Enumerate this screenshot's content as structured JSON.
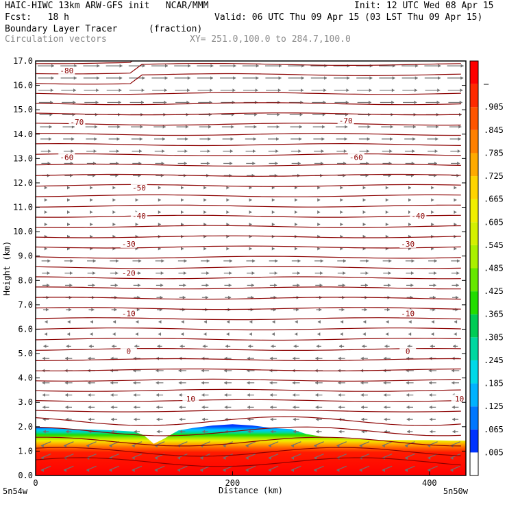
{
  "header": {
    "line1_left": "HAIC-HIWC 13km ARW-GFS init   NCAR/MMM",
    "line1_right": "Init: 12 UTC Wed 08 Apr 15",
    "line2_left": "Fcst:   18 h",
    "line2_right": "Valid: 06 UTC Thu 09 Apr 15 (03 LST Thu 09 Apr 15)",
    "field": "Boundary Layer Tracer",
    "field_units": "(fraction)",
    "vectors": "Circulation vectors",
    "xy_range": "XY= 251.0,100.0 to 284.7,100.0"
  },
  "chart_data": {
    "type": "heatmap",
    "title": "Boundary Layer Tracer",
    "xlabel": "Distance (km)",
    "ylabel": "Height (km)",
    "xlim": [
      0,
      437
    ],
    "ylim": [
      0,
      17
    ],
    "x_ticks": [
      "0",
      "200",
      "400"
    ],
    "x_tick_values": [
      0,
      200,
      400
    ],
    "x_corner_left": "5n54w",
    "x_corner_right": "5n50w",
    "y_ticks": [
      "0.0",
      "1.0",
      "2.0",
      "3.0",
      "4.0",
      "5.0",
      "6.0",
      "7.0",
      "8.0",
      "9.0",
      "10.0",
      "11.0",
      "12.0",
      "13.0",
      "14.0",
      "15.0",
      "16.0",
      "17.0"
    ],
    "colorbar_labels": [
      ".005",
      ".065",
      ".125",
      ".185",
      ".245",
      ".305",
      ".365",
      ".425",
      ".485",
      ".545",
      ".605",
      ".665",
      ".725",
      ".785",
      ".845",
      ".905",
      "–"
    ],
    "colorbar_colors": [
      "#ffffff",
      "#0033ff",
      "#0077ff",
      "#00b2ff",
      "#00d9e8",
      "#00d7a0",
      "#00cc55",
      "#22dd00",
      "#66e800",
      "#aaf000",
      "#d4f000",
      "#f0ee00",
      "#ffd400",
      "#ffaa00",
      "#ff8000",
      "#ff5500",
      "#ff2a00",
      "#ff0000"
    ],
    "tracer_top_km": [
      [
        0,
        1.98
      ],
      [
        20,
        1.95
      ],
      [
        40,
        1.9
      ],
      [
        60,
        1.88
      ],
      [
        80,
        1.85
      ],
      [
        100,
        1.8
      ],
      [
        110,
        1.65
      ],
      [
        120,
        1.3
      ],
      [
        130,
        1.5
      ],
      [
        145,
        1.85
      ],
      [
        160,
        1.95
      ],
      [
        180,
        2.05
      ],
      [
        200,
        2.1
      ],
      [
        220,
        2.05
      ],
      [
        240,
        1.95
      ],
      [
        260,
        1.9
      ],
      [
        275,
        1.7
      ],
      [
        290,
        1.6
      ],
      [
        305,
        1.55
      ],
      [
        320,
        1.5
      ],
      [
        335,
        1.5
      ],
      [
        345,
        1.45
      ],
      [
        360,
        1.45
      ],
      [
        380,
        1.45
      ],
      [
        400,
        1.45
      ],
      [
        420,
        1.43
      ],
      [
        437,
        1.43
      ]
    ],
    "isotherm_labels": [
      "-80",
      "-70",
      "-70",
      "-60",
      "-60",
      "-50",
      "-40",
      "-40",
      "-30",
      "-30",
      "-20",
      "-10",
      "-10",
      "0",
      "0",
      "10",
      "10"
    ],
    "isotherms": [
      {
        "label": "-80",
        "height_km": 16.6
      },
      {
        "label": "-70",
        "height_km": 14.5
      },
      {
        "label": "-60",
        "height_km": 13.0
      },
      {
        "label": "-50",
        "height_km": 11.75
      },
      {
        "label": "-40",
        "height_km": 10.6
      },
      {
        "label": "-30",
        "height_km": 9.5
      },
      {
        "label": "-20",
        "height_km": 8.3
      },
      {
        "label": "-10",
        "height_km": 6.65
      },
      {
        "label": "0",
        "height_km": 5.1
      },
      {
        "label": "10",
        "height_km": 3.15
      }
    ],
    "contour_color": "#8b0000",
    "vector_color": "#707070"
  }
}
